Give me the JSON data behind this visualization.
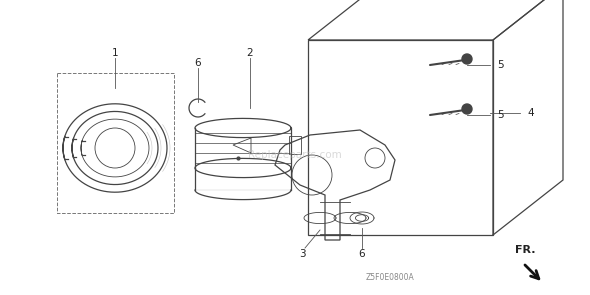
{
  "bg_color": "#ffffff",
  "line_color": "#444444",
  "label_color": "#222222",
  "watermark_text": "Replaceparts.com",
  "diagram_code": "Z5F0E0800A",
  "fr_label": "FR.",
  "figsize": [
    5.9,
    2.95
  ],
  "dpi": 100,
  "label_fontsize": 7.5,
  "code_fontsize": 5.5,
  "fr_fontsize": 8.0
}
